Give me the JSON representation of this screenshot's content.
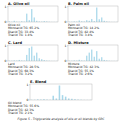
{
  "title": "Figure 5 - Triglyceride analysis of oils or oil blends by GPC",
  "chart_data": [
    {
      "type": "bar",
      "title": "A. Olive oil",
      "annotations": [
        "Olive oil",
        "Monoacid TG: 65.2%",
        "Diacid TG: 33.4%",
        "Triacid TG: 1.4%"
      ],
      "categories": [
        null,
        null,
        null,
        null,
        null,
        null,
        null,
        null,
        null,
        null,
        null,
        null,
        null,
        null,
        null,
        null,
        null,
        null,
        null,
        null
      ],
      "values": [
        0.04,
        0.02,
        0.08,
        0.03,
        0.02,
        0.05,
        0.03,
        0.55,
        0.12,
        0.85,
        0.3,
        0.08,
        0.04,
        0.03,
        0.06,
        0.04,
        0.02,
        0.01,
        0.01,
        0.01
      ],
      "color": "#a8d8ea",
      "ylim": [
        0,
        1.05
      ],
      "yticks": [
        0,
        1
      ],
      "tick_labels": "y"
    },
    {
      "type": "bar",
      "title": "B. Palm oil",
      "annotations": [
        "Palm oil",
        "Monoacid TG: 14.2%",
        "Diacid TG: 82.4%",
        "Triacid TG: 3.4%"
      ],
      "categories": [
        null,
        null,
        null,
        null,
        null,
        null,
        null,
        null,
        null,
        null,
        null,
        null,
        null,
        null,
        null,
        null,
        null,
        null,
        null,
        null
      ],
      "values": [
        0.02,
        0.02,
        0.04,
        0.03,
        0.1,
        0.05,
        0.04,
        0.12,
        0.08,
        0.2,
        0.06,
        0.95,
        0.18,
        0.3,
        0.08,
        0.04,
        0.02,
        0.01,
        0.01,
        0.01
      ],
      "color": "#a8d8ea",
      "ylim": [
        0,
        1.05
      ],
      "yticks": [
        0,
        1
      ],
      "tick_labels": "y"
    },
    {
      "type": "bar",
      "title": "C. Lard",
      "annotations": [
        "Lard",
        "Monoacid TG: 28.5%",
        "Diacid TG: 68.3%",
        "Triacid TG: 3.2%"
      ],
      "categories": [
        null,
        null,
        null,
        null,
        null,
        null,
        null,
        null,
        null,
        null,
        null,
        null,
        null,
        null,
        null,
        null,
        null,
        null,
        null,
        null
      ],
      "values": [
        0.02,
        0.02,
        0.04,
        0.03,
        0.07,
        0.04,
        0.03,
        0.4,
        0.85,
        0.95,
        0.35,
        0.55,
        0.18,
        0.12,
        0.06,
        0.03,
        0.02,
        0.01,
        0.01,
        0.01
      ],
      "color": "#a8d8ea",
      "ylim": [
        0,
        1.05
      ],
      "yticks": [
        0,
        1
      ],
      "tick_labels": "y"
    },
    {
      "type": "bar",
      "title": "D. Mixture",
      "annotations": [
        "Mixture",
        "Monoacid TG: 42.3%",
        "Diacid TG: 55.1%",
        "Triacid TG: 2.6%"
      ],
      "categories": [
        null,
        null,
        null,
        null,
        null,
        null,
        null,
        null,
        null,
        null,
        null,
        null,
        null,
        null,
        null,
        null,
        null,
        null,
        null,
        null
      ],
      "values": [
        0.02,
        0.02,
        0.04,
        0.03,
        0.08,
        0.04,
        0.03,
        0.35,
        0.55,
        0.75,
        0.28,
        0.65,
        0.15,
        0.25,
        0.07,
        0.04,
        0.02,
        0.01,
        0.01,
        0.01
      ],
      "color": "#a8d8ea",
      "ylim": [
        0,
        1.05
      ],
      "yticks": [
        0,
        1
      ],
      "tick_labels": "y"
    },
    {
      "type": "bar",
      "title": "E. Blend",
      "annotations": [
        "Oil blend",
        "Monoacid TG: 55.6%",
        "Diacid TG: 42.3%",
        "Triacid TG: 2.1%"
      ],
      "categories": [
        null,
        null,
        null,
        null,
        null,
        null,
        null,
        null,
        null,
        null,
        null,
        null,
        null,
        null,
        null,
        null,
        null,
        null,
        null,
        null
      ],
      "values": [
        0.02,
        0.02,
        0.04,
        0.03,
        0.05,
        0.03,
        0.02,
        0.28,
        0.1,
        0.95,
        0.32,
        0.22,
        0.1,
        0.08,
        0.05,
        0.03,
        0.02,
        0.01,
        0.01,
        0.01
      ],
      "color": "#a8d8ea",
      "ylim": [
        0,
        1.05
      ],
      "yticks": [
        0,
        1
      ],
      "tick_labels": "y"
    }
  ]
}
